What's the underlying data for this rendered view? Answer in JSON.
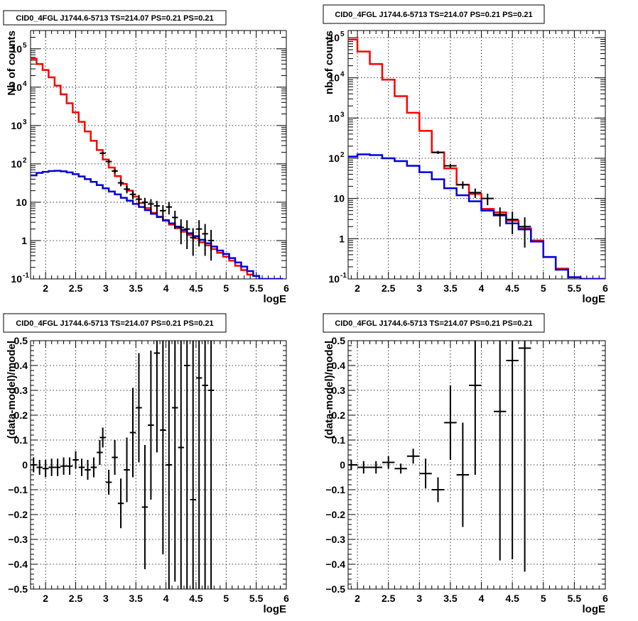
{
  "chart_data": [
    {
      "id": "p1",
      "type": "line",
      "title": "CID0_4FGL J1744.6-5713 TS=214.07 PS=0.21 PS=0.21",
      "xlabel": "logE",
      "ylabel": "Nb of counts",
      "log_y": true,
      "xlim": [
        1.75,
        6.0
      ],
      "ylim": [
        0.1,
        300000
      ],
      "x_ticks": [
        "2",
        "2.5",
        "3",
        "3.5",
        "4",
        "4.5",
        "5",
        "5.5",
        "6"
      ],
      "grid": true,
      "series": [
        {
          "kind": "step",
          "color": "#ff0000",
          "bin_width": 0.1,
          "x": [
            1.8,
            1.9,
            2.0,
            2.1,
            2.2,
            2.3,
            2.4,
            2.5,
            2.6,
            2.7,
            2.8,
            2.9,
            3.0,
            3.1,
            3.2,
            3.3,
            3.4,
            3.5,
            3.6,
            3.7,
            3.8,
            3.9,
            4.0,
            4.1,
            4.2,
            4.3,
            4.4,
            4.5,
            4.6,
            4.7,
            4.8,
            4.9,
            5.0,
            5.1,
            5.2,
            5.3,
            5.4
          ],
          "y": [
            55000,
            40000,
            28000,
            18000,
            11000,
            6500,
            3800,
            2200,
            1250,
            700,
            400,
            230,
            130,
            80,
            48,
            30,
            20,
            14,
            9.5,
            7,
            5.3,
            4.2,
            3.3,
            2.6,
            2.1,
            1.7,
            1.4,
            1.15,
            0.9,
            0.75,
            0.6,
            0.48,
            0.38,
            0.3,
            0.22,
            0.17,
            0.13
          ]
        },
        {
          "kind": "step",
          "color": "#0000dd",
          "bin_width": 0.1,
          "x": [
            1.8,
            1.9,
            2.0,
            2.1,
            2.2,
            2.3,
            2.4,
            2.5,
            2.6,
            2.7,
            2.8,
            2.9,
            3.0,
            3.1,
            3.2,
            3.3,
            3.4,
            3.5,
            3.6,
            3.7,
            3.8,
            3.9,
            4.0,
            4.1,
            4.2,
            4.3,
            4.4,
            4.5,
            4.6,
            4.7,
            4.8,
            4.9,
            5.0,
            5.1,
            5.2,
            5.3,
            5.4,
            5.5,
            5.6,
            5.7,
            5.8,
            5.9
          ],
          "y": [
            50,
            58,
            62,
            65,
            66,
            64,
            60,
            54,
            47,
            40,
            34,
            28,
            23,
            19,
            16,
            13,
            11,
            9,
            7.5,
            6.2,
            5,
            4.1,
            3.4,
            2.8,
            2.3,
            1.9,
            1.55,
            1.3,
            1.05,
            0.85,
            0.7,
            0.55,
            0.45,
            0.35,
            0.27,
            0.21,
            0.16,
            0.12,
            0.1,
            0.1,
            0.1,
            0.1
          ]
        },
        {
          "kind": "points",
          "color": "#000000",
          "x": [
            2.95,
            3.05,
            3.15,
            3.25,
            3.35,
            3.45,
            3.55,
            3.65,
            3.75,
            3.85,
            3.95,
            4.05,
            4.15,
            4.25,
            4.35,
            4.45,
            4.55,
            4.65,
            4.75
          ],
          "y": [
            190,
            115,
            65,
            32,
            22,
            16,
            12,
            10,
            9,
            8,
            6,
            7.5,
            4,
            2.2,
            2,
            1.2,
            2,
            1.5,
            1
          ],
          "err_lo": [
            14,
            10,
            8,
            6,
            5,
            4,
            3.5,
            3,
            3,
            2.8,
            2.4,
            2.7,
            2,
            1.4,
            1.4,
            0.8,
            1.3,
            1.1,
            0.7
          ],
          "err_hi": [
            14,
            10,
            8,
            6,
            5,
            4,
            3.5,
            3,
            3,
            2.8,
            2.4,
            2.7,
            2,
            1.4,
            1.4,
            0.9,
            1.4,
            1.2,
            0.9
          ]
        }
      ]
    },
    {
      "id": "p2",
      "type": "line",
      "title": "CID0_4FGL J1744.6-5713 TS=214.07 PS=0.21 PS=0.21",
      "xlabel": "logE",
      "ylabel": "nb of counts",
      "log_y": true,
      "xlim": [
        1.85,
        6.0
      ],
      "ylim": [
        0.1,
        150000
      ],
      "x_ticks": [
        "2",
        "2.5",
        "3",
        "3.5",
        "4",
        "4.5",
        "5",
        "5.5",
        "6"
      ],
      "grid": true,
      "series": [
        {
          "kind": "step",
          "color": "#ff0000",
          "bin_width": 0.2,
          "x": [
            1.9,
            2.1,
            2.3,
            2.5,
            2.7,
            2.9,
            3.1,
            3.3,
            3.5,
            3.7,
            3.9,
            4.1,
            4.3,
            4.5,
            4.7,
            4.9,
            5.1,
            5.3,
            5.5,
            5.7,
            5.9
          ],
          "y": [
            90000,
            45000,
            22000,
            9000,
            3500,
            1350,
            480,
            140,
            56,
            22,
            13,
            5.5,
            4.5,
            2.8,
            1.8,
            0.9,
            0.35,
            0.18,
            0.11,
            0.1,
            0.1
          ]
        },
        {
          "kind": "step",
          "color": "#0000dd",
          "bin_width": 0.2,
          "x": [
            1.9,
            2.1,
            2.3,
            2.5,
            2.7,
            2.9,
            3.1,
            3.3,
            3.5,
            3.7,
            3.9,
            4.1,
            4.3,
            4.5,
            4.7,
            4.9,
            5.1,
            5.3,
            5.5,
            5.7,
            5.9
          ],
          "y": [
            110,
            125,
            120,
            100,
            85,
            65,
            45,
            30,
            18,
            12,
            8.5,
            5,
            3.8,
            2.4,
            1.7,
            0.85,
            0.35,
            0.17,
            0.11,
            0.1,
            0.1
          ]
        },
        {
          "kind": "points",
          "color": "#000000",
          "x": [
            3.3,
            3.5,
            3.7,
            3.9,
            4.1,
            4.3,
            4.5,
            4.7
          ],
          "y": [
            140,
            65,
            22,
            14,
            10,
            4,
            3,
            2
          ],
          "err_lo": [
            12,
            8,
            4.7,
            3.7,
            3.2,
            2,
            1.7,
            1.4
          ],
          "err_hi": [
            12,
            8,
            4.7,
            3.7,
            3.2,
            2,
            1.7,
            1.4
          ]
        }
      ]
    },
    {
      "id": "p3",
      "type": "scatter",
      "title": "CID0_4FGL J1744.6-5713 TS=214.07 PS=0.21 PS=0.21",
      "xlabel": "logE",
      "ylabel": "(data-model)/model",
      "log_y": false,
      "xlim": [
        1.75,
        6.0
      ],
      "ylim": [
        -0.5,
        0.5
      ],
      "x_ticks": [
        "2",
        "2.5",
        "3",
        "3.5",
        "4",
        "4.5",
        "5",
        "5.5",
        "6"
      ],
      "y_ticks": [
        "−0.5",
        "−0.4",
        "−0.3",
        "−0.2",
        "−0.1",
        "0",
        "0.1",
        "0.2",
        "0.3",
        "0.4",
        "0.5"
      ],
      "grid": true,
      "x_halfwidth": 0.05,
      "series": [
        {
          "kind": "points",
          "color": "#000000",
          "x": [
            1.8,
            1.9,
            2.0,
            2.1,
            2.2,
            2.3,
            2.4,
            2.5,
            2.6,
            2.7,
            2.8,
            2.9,
            2.95,
            3.05,
            3.15,
            3.25,
            3.35,
            3.45,
            3.55,
            3.65,
            3.75,
            3.85,
            3.95,
            4.05,
            4.15,
            4.25,
            4.35,
            4.45,
            4.55,
            4.65,
            4.75
          ],
          "y": [
            0.0,
            -0.01,
            -0.015,
            -0.01,
            -0.01,
            -0.005,
            -0.005,
            0.02,
            -0.01,
            -0.02,
            -0.01,
            0.05,
            0.11,
            -0.07,
            0.03,
            -0.155,
            -0.02,
            0.13,
            0.23,
            -0.17,
            0.16,
            0.45,
            0.14,
            0.0,
            0.23,
            0.07,
            0.4,
            -0.14,
            0.35,
            0.32,
            0.3
          ],
          "err_lo": [
            0.03,
            0.03,
            0.035,
            0.035,
            0.035,
            0.035,
            0.035,
            0.035,
            0.035,
            0.04,
            0.04,
            0.05,
            0.04,
            0.05,
            0.07,
            0.1,
            0.13,
            0.18,
            0.22,
            0.25,
            0.3,
            0.4,
            0.5,
            0.6,
            0.7,
            0.9,
            0.9,
            0.9,
            0.9,
            1.0,
            1.0
          ],
          "err_hi": [
            0.03,
            0.03,
            0.035,
            0.035,
            0.035,
            0.035,
            0.035,
            0.035,
            0.035,
            0.04,
            0.04,
            0.05,
            0.04,
            0.05,
            0.07,
            0.1,
            0.13,
            0.18,
            0.22,
            0.25,
            0.3,
            0.4,
            0.5,
            0.6,
            0.7,
            0.9,
            0.9,
            0.9,
            0.9,
            1.0,
            1.0
          ]
        }
      ]
    },
    {
      "id": "p4",
      "type": "scatter",
      "title": "CID0_4FGL J1744.6-5713 TS=214.07 PS=0.21 PS=0.21",
      "xlabel": "logE",
      "ylabel": "(data-model)/model",
      "log_y": false,
      "xlim": [
        1.85,
        6.0
      ],
      "ylim": [
        -0.5,
        0.5
      ],
      "x_ticks": [
        "2",
        "2.5",
        "3",
        "3.5",
        "4",
        "4.5",
        "5",
        "5.5",
        "6"
      ],
      "y_ticks": [
        "−0.5",
        "−0.4",
        "−0.3",
        "−0.2",
        "−0.1",
        "0",
        "0.1",
        "0.2",
        "0.3",
        "0.4",
        "0.5"
      ],
      "grid": true,
      "x_halfwidth": 0.1,
      "series": [
        {
          "kind": "points",
          "color": "#000000",
          "x": [
            1.9,
            2.1,
            2.3,
            2.5,
            2.7,
            2.9,
            3.1,
            3.3,
            3.5,
            3.7,
            3.9,
            4.3,
            4.5,
            4.7
          ],
          "y": [
            0.0,
            -0.01,
            -0.01,
            0.01,
            -0.015,
            0.035,
            -0.035,
            -0.1,
            0.17,
            -0.04,
            0.32,
            0.215,
            0.42,
            0.47
          ],
          "err_lo": [
            0.02,
            0.025,
            0.025,
            0.025,
            0.02,
            0.03,
            0.06,
            0.05,
            0.15,
            0.21,
            0.36,
            0.6,
            0.8,
            0.9
          ],
          "err_hi": [
            0.02,
            0.025,
            0.025,
            0.025,
            0.02,
            0.03,
            0.06,
            0.05,
            0.15,
            0.21,
            0.36,
            0.6,
            0.8,
            0.9
          ]
        }
      ]
    }
  ]
}
